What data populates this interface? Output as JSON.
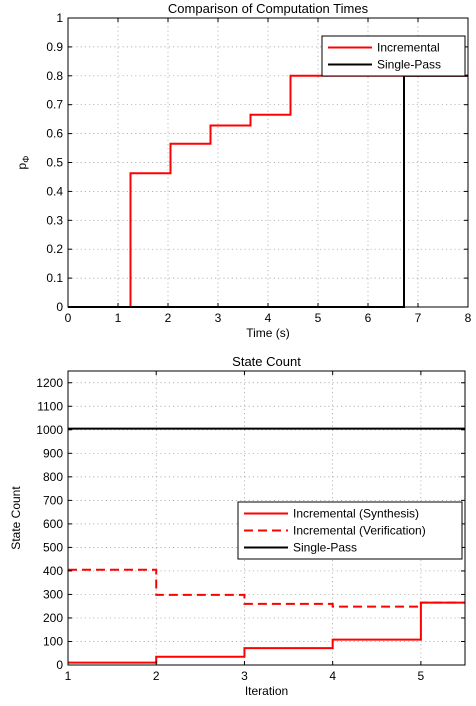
{
  "chart_data": [
    {
      "type": "line",
      "step": true,
      "title": "Comparison of Computation Times",
      "xlabel": "Time (s)",
      "ylabel_main": "p",
      "ylabel_sub": "Φ",
      "xlim": [
        0,
        8
      ],
      "ylim": [
        0,
        1
      ],
      "xticks": [
        "0",
        "1",
        "2",
        "3",
        "4",
        "5",
        "6",
        "7",
        "8"
      ],
      "yticks": [
        "0",
        "0.1",
        "0.2",
        "0.3",
        "0.4",
        "0.5",
        "0.6",
        "0.7",
        "0.8",
        "0.9",
        "1"
      ],
      "grid": true,
      "legend_position": "top-right",
      "series": [
        {
          "name": "Incremental",
          "color": "#ff0000",
          "dash": "solid",
          "x": [
            0,
            1.25,
            1.25,
            2.05,
            2.05,
            2.85,
            2.85,
            3.65,
            3.65,
            4.45,
            4.45,
            8
          ],
          "y": [
            0,
            0,
            0.463,
            0.463,
            0.565,
            0.565,
            0.628,
            0.628,
            0.665,
            0.665,
            0.8,
            0.8
          ]
        },
        {
          "name": "Single-Pass",
          "color": "#000000",
          "dash": "solid",
          "x": [
            0,
            6.72,
            6.72,
            8
          ],
          "y": [
            0,
            0,
            0.8,
            0.8
          ]
        }
      ]
    },
    {
      "type": "line",
      "step": true,
      "title": "State Count",
      "xlabel": "Iteration",
      "ylabel": "State Count",
      "xlim": [
        1,
        5.5
      ],
      "ylim": [
        0,
        1250
      ],
      "xticks": [
        "1",
        "2",
        "3",
        "4",
        "5"
      ],
      "yticks": [
        "0",
        "100",
        "200",
        "300",
        "400",
        "500",
        "600",
        "700",
        "800",
        "900",
        "1000",
        "1100",
        "1200"
      ],
      "grid": true,
      "legend_position": "center-right",
      "series": [
        {
          "name": "Incremental (Synthesis)",
          "color": "#ff0000",
          "dash": "solid",
          "x": [
            1,
            2,
            2,
            3,
            3,
            4,
            4,
            5,
            5,
            5.5
          ],
          "y": [
            10,
            10,
            35,
            35,
            72,
            72,
            108,
            108,
            265,
            265
          ]
        },
        {
          "name": "Incremental (Verification)",
          "color": "#ff0000",
          "dash": "dashed",
          "x": [
            1,
            2,
            2,
            3,
            3,
            4,
            4,
            5,
            5,
            5.5
          ],
          "y": [
            405,
            405,
            298,
            298,
            260,
            260,
            248,
            248,
            265,
            265
          ]
        },
        {
          "name": "Single-Pass",
          "color": "#000000",
          "dash": "solid",
          "x": [
            1,
            5.5
          ],
          "y": [
            1005,
            1005
          ]
        }
      ]
    }
  ]
}
